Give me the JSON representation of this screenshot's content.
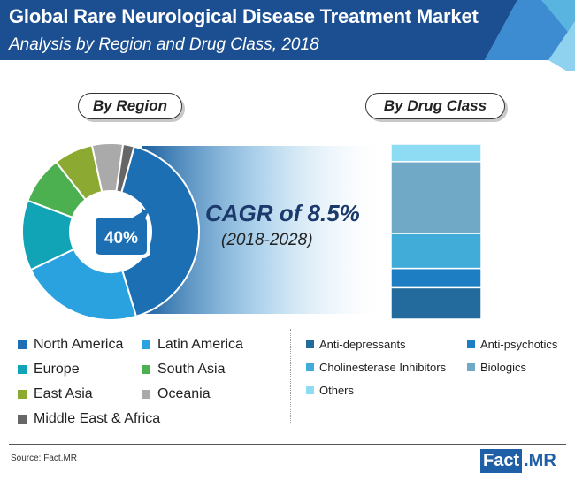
{
  "header": {
    "title": "Global Rare Neurological Disease Treatment Market",
    "subtitle": "Analysis by Region and Drug Class, 2018"
  },
  "colors": {
    "header_dark": "#1c4f91",
    "header_light": "#5ab4e0",
    "cagr_text": "#1b3a6b"
  },
  "chart_data": [
    {
      "type": "pie",
      "title": "By Region",
      "center_label": "40%",
      "slices": [
        {
          "label": "North America",
          "value": 40,
          "color": "#1d6fb4"
        },
        {
          "label": "Latin America",
          "value": 22,
          "color": "#29a2df"
        },
        {
          "label": "Europe",
          "value": 12.5,
          "color": "#11a3b6"
        },
        {
          "label": "South Asia",
          "value": 8.5,
          "color": "#4caf50"
        },
        {
          "label": "East Asia",
          "value": 7,
          "color": "#8ca932"
        },
        {
          "label": "Oceania",
          "value": 5.5,
          "color": "#aaaaaa"
        },
        {
          "label": "Middle East & Africa",
          "value": 2,
          "color": "#666666"
        }
      ]
    },
    {
      "type": "bar",
      "stacked": true,
      "title": "By Drug Class",
      "segments": [
        {
          "label": "Anti-depressants",
          "value": 18,
          "color": "#226b9c"
        },
        {
          "label": "Anti-psychotics",
          "value": 11,
          "color": "#1d7ec4"
        },
        {
          "label": "Cholinesterase Inhibitors",
          "value": 20,
          "color": "#41acd8"
        },
        {
          "label": "Biologics",
          "value": 41,
          "color": "#6fa9c6"
        },
        {
          "label": "Others",
          "value": 10,
          "color": "#8ddcf3"
        }
      ]
    }
  ],
  "cagr": {
    "label": "CAGR of 8.5%",
    "period": "(2018-2028)"
  },
  "footer": {
    "source": "Source: Fact.MR",
    "logo_left": "Fact",
    "logo_right": ".MR"
  }
}
